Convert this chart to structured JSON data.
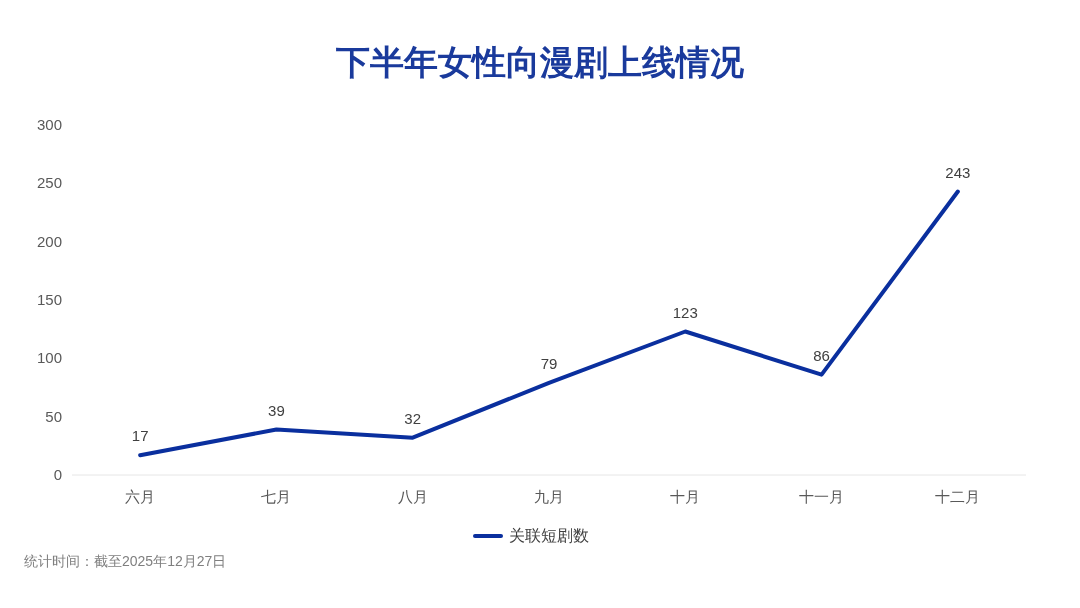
{
  "chart_data": {
    "type": "line",
    "title": "下半年女性向漫剧上线情况",
    "categories": [
      "六月",
      "七月",
      "八月",
      "九月",
      "十月",
      "十一月",
      "十二月"
    ],
    "series": [
      {
        "name": "关联短剧数",
        "color": "#0a2f9e",
        "values": [
          17,
          39,
          32,
          79,
          123,
          86,
          243
        ]
      }
    ],
    "ylim": [
      0,
      300
    ],
    "yticks": [
      0,
      50,
      100,
      150,
      200,
      250,
      300
    ],
    "data_labels": true,
    "legend": "bottom",
    "grid": false,
    "annotations": [
      "统计时间：截至2025年12月27日"
    ]
  }
}
